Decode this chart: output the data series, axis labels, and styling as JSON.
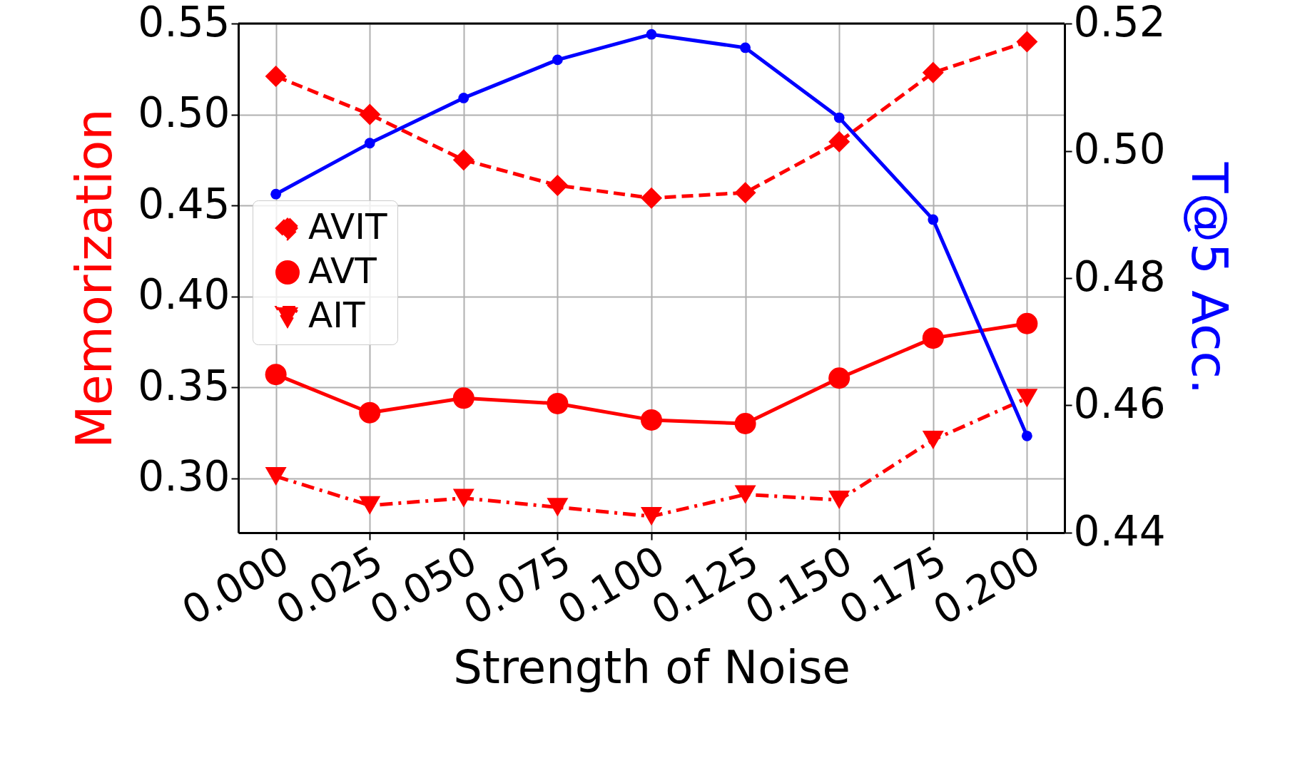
{
  "chart_data": {
    "type": "line",
    "xlabel": "Strength of Noise",
    "ylabel": "Memorization",
    "y2label": "T@5 Acc.",
    "x": [
      0,
      0.025,
      0.05,
      0.075,
      0.1,
      0.125,
      0.15,
      0.175,
      0.2
    ],
    "xlim": [
      -0.01,
      0.21
    ],
    "xticks": [
      {
        "value": 0,
        "label": "0.000"
      },
      {
        "value": 0.025,
        "label": "0.025"
      },
      {
        "value": 0.05,
        "label": "0.050"
      },
      {
        "value": 0.075,
        "label": "0.075"
      },
      {
        "value": 0.1,
        "label": "0.100"
      },
      {
        "value": 0.125,
        "label": "0.125"
      },
      {
        "value": 0.15,
        "label": "0.150"
      },
      {
        "value": 0.175,
        "label": "0.175"
      },
      {
        "value": 0.2,
        "label": "0.200"
      }
    ],
    "ylim": [
      0.27,
      0.55
    ],
    "yticks": [
      {
        "value": 0.3,
        "label": "0.30"
      },
      {
        "value": 0.35,
        "label": "0.35"
      },
      {
        "value": 0.4,
        "label": "0.40"
      },
      {
        "value": 0.45,
        "label": "0.45"
      },
      {
        "value": 0.5,
        "label": "0.50"
      },
      {
        "value": 0.55,
        "label": "0.55"
      }
    ],
    "y2lim": [
      0.44,
      0.52
    ],
    "y2ticks": [
      {
        "value": 0.44,
        "label": "0.44"
      },
      {
        "value": 0.46,
        "label": "0.46"
      },
      {
        "value": 0.48,
        "label": "0.48"
      },
      {
        "value": 0.5,
        "label": "0.50"
      },
      {
        "value": 0.52,
        "label": "0.52"
      }
    ],
    "grid": true,
    "legend": "left",
    "series": [
      {
        "name": "AVIT",
        "color": "#ff0000",
        "marker": "diamond",
        "line_style": "dashed",
        "values": [
          0.521,
          0.5,
          0.475,
          0.461,
          0.454,
          0.457,
          0.485,
          0.523,
          0.54
        ]
      },
      {
        "name": "AVT",
        "color": "#ff0000",
        "marker": "circle",
        "line_style": "solid",
        "values": [
          0.357,
          0.336,
          0.344,
          0.341,
          0.332,
          0.33,
          0.355,
          0.377,
          0.385
        ]
      },
      {
        "name": "AIT",
        "color": "#ff0000",
        "marker": "triangle",
        "line_style": "dashdot",
        "values": [
          0.301,
          0.285,
          0.289,
          0.284,
          0.279,
          0.291,
          0.288,
          0.321,
          0.344
        ]
      },
      {
        "color": "#0000ff",
        "marker": "circle",
        "line_style": "solid",
        "axis": "y2",
        "values": [
          0.4932,
          0.5012,
          0.5083,
          0.5143,
          0.5183,
          0.5162,
          0.5052,
          0.4892,
          0.4552
        ]
      }
    ]
  }
}
